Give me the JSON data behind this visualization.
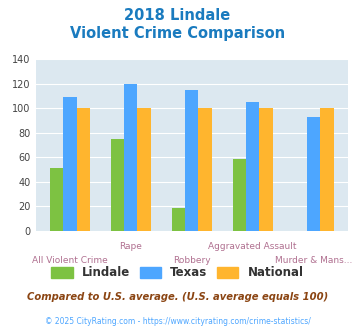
{
  "title_line1": "2018 Lindale",
  "title_line2": "Violent Crime Comparison",
  "categories": [
    "All Violent Crime",
    "Rape",
    "Robbery",
    "Aggravated Assault",
    "Murder & Mans..."
  ],
  "cat_top": [
    "",
    "Rape",
    "",
    "Aggravated Assault",
    ""
  ],
  "cat_bottom": [
    "All Violent Crime",
    "",
    "Robbery",
    "",
    "Murder & Mans..."
  ],
  "lindale": [
    51,
    75,
    19,
    59,
    0
  ],
  "texas": [
    109,
    120,
    115,
    105,
    93
  ],
  "national": [
    100,
    100,
    100,
    100,
    100
  ],
  "lindale_color": "#7dc242",
  "texas_color": "#4da6ff",
  "national_color": "#ffb52e",
  "title_color": "#1a7bbf",
  "bg_color": "#dce8f0",
  "label_color": "#b07090",
  "ylim": [
    0,
    140
  ],
  "yticks": [
    0,
    20,
    40,
    60,
    80,
    100,
    120,
    140
  ],
  "footnote1": "Compared to U.S. average. (U.S. average equals 100)",
  "footnote2": "© 2025 CityRating.com - https://www.cityrating.com/crime-statistics/",
  "footnote1_color": "#8b4513",
  "footnote2_color": "#4da6ff",
  "bar_width": 0.22
}
